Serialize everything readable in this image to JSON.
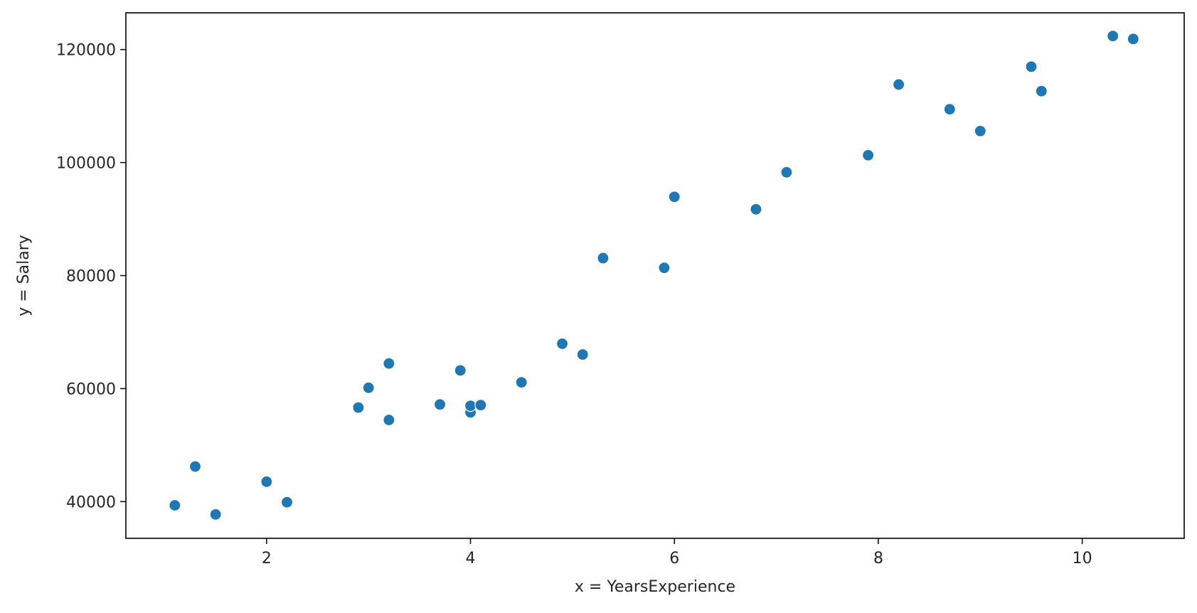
{
  "chart_data": {
    "type": "scatter",
    "title": "",
    "xlabel": "x = YearsExperience",
    "ylabel": "y = Salary",
    "xlim": [
      0.62,
      11.0
    ],
    "ylim": [
      33500,
      126500
    ],
    "xticks": [
      2,
      4,
      6,
      8,
      10
    ],
    "yticks": [
      40000,
      60000,
      80000,
      100000,
      120000
    ],
    "xtick_labels": [
      "2",
      "4",
      "6",
      "8",
      "10"
    ],
    "ytick_labels": [
      "40000",
      "60000",
      "80000",
      "100000",
      "120000"
    ],
    "grid": false,
    "legend": "none",
    "point_color": "#1f77b4",
    "point_edge_color": "#ffffff",
    "series": [
      {
        "points": [
          {
            "x": 1.1,
            "y": 39343
          },
          {
            "x": 1.3,
            "y": 46205
          },
          {
            "x": 1.5,
            "y": 37731
          },
          {
            "x": 2.0,
            "y": 43525
          },
          {
            "x": 2.2,
            "y": 39891
          },
          {
            "x": 2.9,
            "y": 56642
          },
          {
            "x": 3.0,
            "y": 60150
          },
          {
            "x": 3.2,
            "y": 54445
          },
          {
            "x": 3.2,
            "y": 64445
          },
          {
            "x": 3.7,
            "y": 57189
          },
          {
            "x": 3.9,
            "y": 63218
          },
          {
            "x": 4.0,
            "y": 55794
          },
          {
            "x": 4.0,
            "y": 56957
          },
          {
            "x": 4.1,
            "y": 57081
          },
          {
            "x": 4.5,
            "y": 61111
          },
          {
            "x": 4.9,
            "y": 67938
          },
          {
            "x": 5.1,
            "y": 66029
          },
          {
            "x": 5.3,
            "y": 83088
          },
          {
            "x": 5.9,
            "y": 81363
          },
          {
            "x": 6.0,
            "y": 93940
          },
          {
            "x": 6.8,
            "y": 91738
          },
          {
            "x": 7.1,
            "y": 98273
          },
          {
            "x": 7.9,
            "y": 101302
          },
          {
            "x": 8.2,
            "y": 113812
          },
          {
            "x": 8.7,
            "y": 109431
          },
          {
            "x": 9.0,
            "y": 105582
          },
          {
            "x": 9.5,
            "y": 116969
          },
          {
            "x": 9.6,
            "y": 112635
          },
          {
            "x": 10.3,
            "y": 122391
          },
          {
            "x": 10.5,
            "y": 121872
          }
        ]
      }
    ]
  }
}
